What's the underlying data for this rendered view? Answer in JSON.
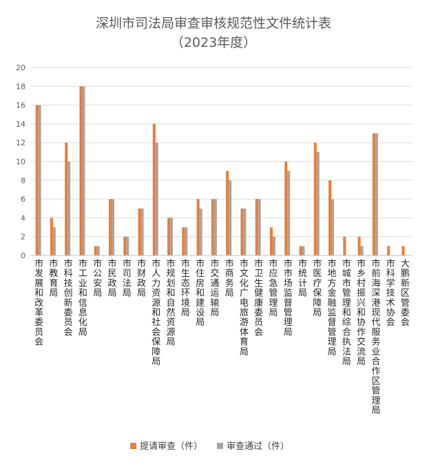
{
  "chart_data": {
    "type": "bar",
    "title": "深圳市司法局审查审核规范性文件统计表",
    "subtitle": "（2023年度）",
    "ylim": [
      0,
      20
    ],
    "yticks": [
      0,
      2,
      4,
      6,
      8,
      10,
      12,
      14,
      16,
      18,
      20
    ],
    "grid": true,
    "legend_position": "bottom",
    "colors": {
      "submitted": "#ED7D31",
      "approved": "#A5A5A5"
    },
    "categories": [
      "市发展和改革委员会",
      "市教育局",
      "市科技创新委员会",
      "市工业和信息化局",
      "市公安局",
      "市民政局",
      "市司法局",
      "市财政局",
      "市人力资源和社会保障局",
      "市规划和自然资源局",
      "市生态环境局",
      "市住房和建设局",
      "市交通运输局",
      "市商务局",
      "市文化广电旅游体育局",
      "市卫生健康委员会",
      "市应急管理局",
      "市市场监督管理局",
      "市统计局",
      "市医疗保障局",
      "市地方金融监督管理局",
      "市城市管理和综合执法局",
      "市乡村振兴和协作交流局",
      "市前海深港现代服务业合作区管理局",
      "市科学技术协会",
      "大鹏新区管委会"
    ],
    "series": [
      {
        "name": "提请审查（件）",
        "values": [
          16,
          4,
          12,
          18,
          1,
          6,
          2,
          5,
          14,
          4,
          3,
          6,
          6,
          9,
          5,
          6,
          3,
          10,
          1,
          12,
          8,
          2,
          2,
          13,
          1,
          1
        ]
      },
      {
        "name": "审查通过（件）",
        "values": [
          16,
          3,
          10,
          18,
          1,
          6,
          2,
          5,
          12,
          4,
          3,
          5,
          6,
          8,
          5,
          6,
          2,
          9,
          1,
          11,
          6,
          0,
          1,
          13,
          0,
          0
        ]
      }
    ]
  }
}
